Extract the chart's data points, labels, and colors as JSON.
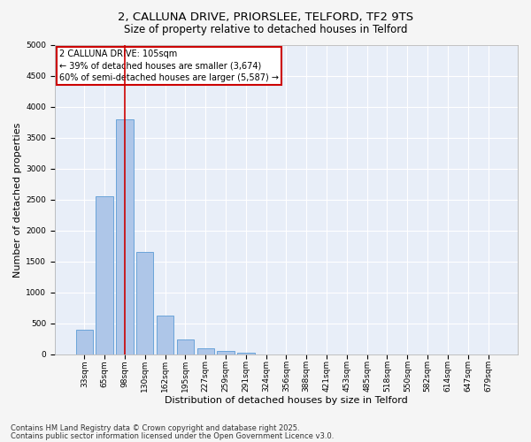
{
  "title_line1": "2, CALLUNA DRIVE, PRIORSLEE, TELFORD, TF2 9TS",
  "title_line2": "Size of property relative to detached houses in Telford",
  "xlabel": "Distribution of detached houses by size in Telford",
  "ylabel": "Number of detached properties",
  "categories": [
    "33sqm",
    "65sqm",
    "98sqm",
    "130sqm",
    "162sqm",
    "195sqm",
    "227sqm",
    "259sqm",
    "291sqm",
    "324sqm",
    "356sqm",
    "388sqm",
    "421sqm",
    "453sqm",
    "485sqm",
    "518sqm",
    "550sqm",
    "582sqm",
    "614sqm",
    "647sqm",
    "679sqm"
  ],
  "values": [
    400,
    2550,
    3800,
    1650,
    620,
    240,
    100,
    50,
    30,
    0,
    0,
    0,
    0,
    0,
    0,
    0,
    0,
    0,
    0,
    0,
    0
  ],
  "bar_color": "#aec6e8",
  "bar_edge_color": "#5b9bd5",
  "plot_bg_color": "#e8eef8",
  "fig_bg_color": "#f5f5f5",
  "grid_color": "#ffffff",
  "vline_x_index": 2,
  "vline_color": "#cc0000",
  "annotation_title": "2 CALLUNA DRIVE: 105sqm",
  "annotation_line1": "← 39% of detached houses are smaller (3,674)",
  "annotation_line2": "60% of semi-detached houses are larger (5,587) →",
  "annotation_box_color": "#cc0000",
  "ylim": [
    0,
    5000
  ],
  "yticks": [
    0,
    500,
    1000,
    1500,
    2000,
    2500,
    3000,
    3500,
    4000,
    4500,
    5000
  ],
  "footer_line1": "Contains HM Land Registry data © Crown copyright and database right 2025.",
  "footer_line2": "Contains public sector information licensed under the Open Government Licence v3.0.",
  "title_fontsize": 9.5,
  "subtitle_fontsize": 8.5,
  "axis_label_fontsize": 8,
  "tick_fontsize": 6.5,
  "annotation_fontsize": 7,
  "footer_fontsize": 6
}
